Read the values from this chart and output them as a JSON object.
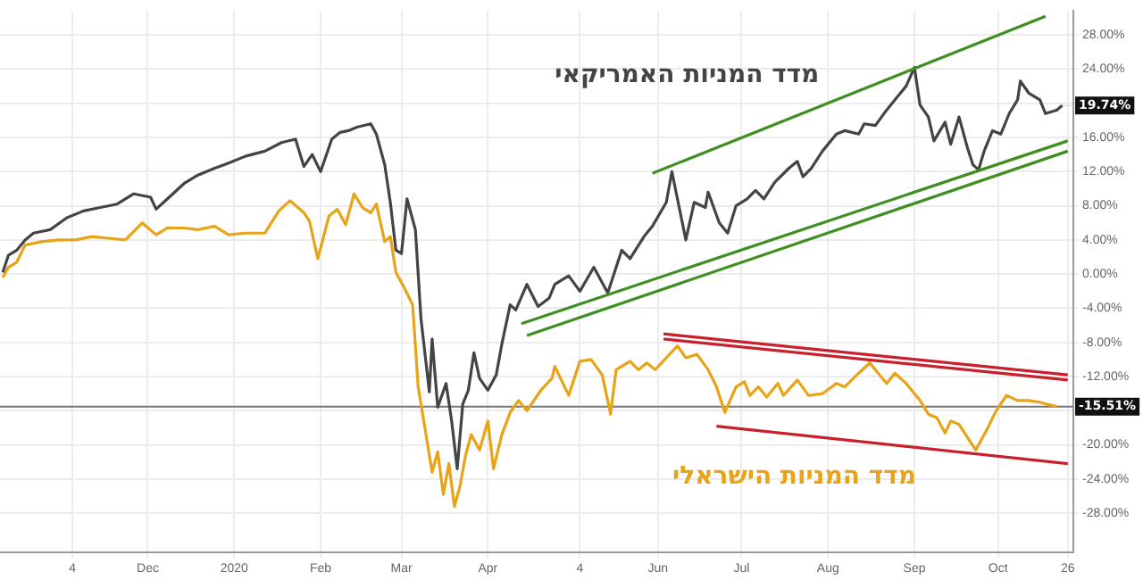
{
  "chart_data": {
    "type": "line",
    "marker": "none",
    "grid": true,
    "xlim": [
      "2019-10-09",
      "2020-10-28"
    ],
    "xticks": [
      {
        "value": "2019-11-04",
        "label": "4"
      },
      {
        "value": "2019-12-01",
        "label": "Dec"
      },
      {
        "value": "2020-01-01",
        "label": "2020"
      },
      {
        "value": "2020-02-01",
        "label": "Feb"
      },
      {
        "value": "2020-03-01",
        "label": "Mar"
      },
      {
        "value": "2020-04-01",
        "label": "Apr"
      },
      {
        "value": "2020-05-04",
        "label": "4"
      },
      {
        "value": "2020-06-01",
        "label": "Jun"
      },
      {
        "value": "2020-07-01",
        "label": "Jul"
      },
      {
        "value": "2020-08-01",
        "label": "Aug"
      },
      {
        "value": "2020-09-01",
        "label": "Sep"
      },
      {
        "value": "2020-10-01",
        "label": "Oct"
      },
      {
        "value": "2020-10-26",
        "label": "26"
      }
    ],
    "ylim": [
      -32.6,
      30.8
    ],
    "yticks": [
      {
        "value": 28,
        "label": "28.00%"
      },
      {
        "value": 24,
        "label": "24.00%"
      },
      {
        "value": 20,
        "label": null
      },
      {
        "value": 16,
        "label": "16.00%"
      },
      {
        "value": 12,
        "label": "12.00%"
      },
      {
        "value": 8,
        "label": "8.00%"
      },
      {
        "value": 4,
        "label": "4.00%"
      },
      {
        "value": 0,
        "label": "0.00%"
      },
      {
        "value": -4,
        "label": "-4.00%"
      },
      {
        "value": -8,
        "label": "-8.00%"
      },
      {
        "value": -12,
        "label": "-12.00%"
      },
      {
        "value": -16,
        "label": null
      },
      {
        "value": -20,
        "label": "-20.00%"
      },
      {
        "value": -24,
        "label": "-24.00%"
      },
      {
        "value": -28,
        "label": "-28.00%"
      }
    ],
    "ref_lines": [
      {
        "axis": "y",
        "value": -15.51,
        "label": "-15.51%",
        "color": "#777777"
      }
    ],
    "annotations": [
      {
        "text": "19.74%",
        "x": "2020-10-24",
        "y": 19.74
      }
    ],
    "series": [
      {
        "name": "מדד המניות האמריקאי",
        "color": "#444444",
        "x": [
          "2019-10-10",
          "2019-10-12",
          "2019-10-15",
          "2019-10-18",
          "2019-10-21",
          "2019-10-27",
          "2019-11-02",
          "2019-11-08",
          "2019-11-14",
          "2019-11-20",
          "2019-11-26",
          "2019-12-02",
          "2019-12-04",
          "2019-12-08",
          "2019-12-14",
          "2019-12-19",
          "2019-12-25",
          "2019-12-30",
          "2020-01-05",
          "2020-01-12",
          "2020-01-18",
          "2020-01-23",
          "2020-01-26",
          "2020-01-29",
          "2020-02-01",
          "2020-02-05",
          "2020-02-08",
          "2020-02-11",
          "2020-02-14",
          "2020-02-19",
          "2020-02-21",
          "2020-02-24",
          "2020-02-26",
          "2020-02-28",
          "2020-03-01",
          "2020-03-03",
          "2020-03-06",
          "2020-03-08",
          "2020-03-11",
          "2020-03-12",
          "2020-03-14",
          "2020-03-17",
          "2020-03-19",
          "2020-03-21",
          "2020-03-23",
          "2020-03-25",
          "2020-03-27",
          "2020-03-29",
          "2020-04-01",
          "2020-04-04",
          "2020-04-06",
          "2020-04-09",
          "2020-04-11",
          "2020-04-15",
          "2020-04-19",
          "2020-04-23",
          "2020-04-25",
          "2020-04-30",
          "2020-05-04",
          "2020-05-09",
          "2020-05-14",
          "2020-05-19",
          "2020-05-22",
          "2020-05-27",
          "2020-05-30",
          "2020-06-04",
          "2020-06-06",
          "2020-06-08",
          "2020-06-11",
          "2020-06-14",
          "2020-06-18",
          "2020-06-19",
          "2020-06-23",
          "2020-06-26",
          "2020-06-29",
          "2020-07-03",
          "2020-07-06",
          "2020-07-09",
          "2020-07-13",
          "2020-07-18",
          "2020-07-21",
          "2020-07-23",
          "2020-07-26",
          "2020-07-30",
          "2020-08-04",
          "2020-08-07",
          "2020-08-12",
          "2020-08-14",
          "2020-08-18",
          "2020-08-22",
          "2020-08-26",
          "2020-08-29",
          "2020-09-01",
          "2020-09-03",
          "2020-09-06",
          "2020-09-08",
          "2020-09-12",
          "2020-09-14",
          "2020-09-17",
          "2020-09-20",
          "2020-09-22",
          "2020-09-24",
          "2020-09-26",
          "2020-09-29",
          "2020-10-02",
          "2020-10-05",
          "2020-10-08",
          "2020-10-09",
          "2020-10-12",
          "2020-10-16",
          "2020-10-18",
          "2020-10-22",
          "2020-10-24"
        ],
        "values": [
          0.2,
          2.2,
          2.8,
          4,
          4.8,
          5.2,
          6.6,
          7.4,
          7.8,
          8.2,
          9.4,
          9,
          7.6,
          8.8,
          10.6,
          11.6,
          12.4,
          13,
          13.8,
          14.4,
          15.4,
          15.8,
          12.6,
          14,
          12,
          15.8,
          16.6,
          16.8,
          17.2,
          17.6,
          16.4,
          12.8,
          8.4,
          2.8,
          2.4,
          8.8,
          5.2,
          -5.2,
          -13.8,
          -7.6,
          -15.6,
          -12.8,
          -17.2,
          -22.8,
          -15.2,
          -13.6,
          -9.2,
          -12.2,
          -13.6,
          -11.8,
          -8.2,
          -3.6,
          -4.2,
          -1.2,
          -3.8,
          -2.8,
          -1.2,
          -0.2,
          -2,
          0.8,
          -2.2,
          2.8,
          1.8,
          4.4,
          5.6,
          8.4,
          12,
          8.8,
          4,
          8.4,
          7.8,
          9.6,
          6,
          4.8,
          8,
          8.8,
          9.8,
          8.8,
          10.8,
          12.4,
          13.2,
          11.4,
          12.4,
          14.4,
          16.4,
          16.8,
          16.4,
          17.6,
          17.4,
          19.2,
          20.8,
          22,
          24.2,
          19.8,
          18.4,
          15.6,
          17.8,
          15.2,
          18.4,
          14.8,
          12.8,
          12.2,
          14.4,
          16.8,
          16.4,
          18.8,
          20.4,
          22.6,
          21.2,
          20.4,
          18.8,
          19.2,
          19.74
        ]
      },
      {
        "name": "מדד המניות הישראלי",
        "color": "#e8a317",
        "x": [
          "2019-10-10",
          "2019-10-12",
          "2019-10-15",
          "2019-10-18",
          "2019-10-24",
          "2019-10-30",
          "2019-11-05",
          "2019-11-11",
          "2019-11-17",
          "2019-11-23",
          "2019-11-29",
          "2019-12-04",
          "2019-12-08",
          "2019-12-14",
          "2019-12-19",
          "2019-12-25",
          "2019-12-30",
          "2020-01-05",
          "2020-01-12",
          "2020-01-17",
          "2020-01-21",
          "2020-01-26",
          "2020-01-28",
          "2020-01-31",
          "2020-02-04",
          "2020-02-07",
          "2020-02-10",
          "2020-02-13",
          "2020-02-16",
          "2020-02-19",
          "2020-02-21",
          "2020-02-24",
          "2020-02-26",
          "2020-02-28",
          "2020-03-02",
          "2020-03-05",
          "2020-03-07",
          "2020-03-10",
          "2020-03-12",
          "2020-03-14",
          "2020-03-16",
          "2020-03-18",
          "2020-03-20",
          "2020-03-22",
          "2020-03-24",
          "2020-03-26",
          "2020-03-29",
          "2020-04-01",
          "2020-04-03",
          "2020-04-06",
          "2020-04-09",
          "2020-04-12",
          "2020-04-15",
          "2020-04-20",
          "2020-04-24",
          "2020-04-25",
          "2020-04-30",
          "2020-05-04",
          "2020-05-08",
          "2020-05-12",
          "2020-05-15",
          "2020-05-17",
          "2020-05-22",
          "2020-05-25",
          "2020-05-28",
          "2020-05-31",
          "2020-06-04",
          "2020-06-08",
          "2020-06-11",
          "2020-06-15",
          "2020-06-19",
          "2020-06-22",
          "2020-06-25",
          "2020-06-29",
          "2020-07-02",
          "2020-07-04",
          "2020-07-07",
          "2020-07-10",
          "2020-07-14",
          "2020-07-16",
          "2020-07-21",
          "2020-07-25",
          "2020-07-30",
          "2020-08-04",
          "2020-08-07",
          "2020-08-12",
          "2020-08-16",
          "2020-08-19",
          "2020-08-22",
          "2020-08-25",
          "2020-08-29",
          "2020-09-03",
          "2020-09-06",
          "2020-09-09",
          "2020-09-12",
          "2020-09-14",
          "2020-09-17",
          "2020-09-21",
          "2020-09-23",
          "2020-09-27",
          "2020-09-30",
          "2020-10-04",
          "2020-10-08",
          "2020-10-12",
          "2020-10-16",
          "2020-10-18",
          "2020-10-22"
        ],
        "values": [
          -0.4,
          0.8,
          1.4,
          3.4,
          3.8,
          4,
          4,
          4.4,
          4.2,
          4,
          6,
          4.6,
          5.4,
          5.4,
          5.2,
          5.6,
          4.6,
          4.8,
          4.8,
          7.4,
          8.6,
          7.2,
          6.2,
          1.8,
          6.8,
          7.6,
          5.8,
          9.4,
          7.8,
          7.2,
          8.2,
          3.8,
          4.4,
          0.2,
          -1.6,
          -3.6,
          -13.2,
          -19.2,
          -23.2,
          -20.8,
          -25.8,
          -22.2,
          -27.2,
          -24.8,
          -21.2,
          -18.8,
          -20.6,
          -17.2,
          -22.8,
          -18.8,
          -16.2,
          -14.8,
          -16,
          -13.6,
          -12.2,
          -10.8,
          -14.2,
          -10.2,
          -10,
          -11.8,
          -16.4,
          -11.2,
          -10.2,
          -11.2,
          -10.4,
          -11.2,
          -9.8,
          -8.4,
          -9.8,
          -9.4,
          -11.2,
          -13.2,
          -16.2,
          -13.2,
          -12.6,
          -14.2,
          -13.2,
          -14.4,
          -12.8,
          -14.2,
          -12.4,
          -14.2,
          -14,
          -12.8,
          -13.2,
          -11.6,
          -10.4,
          -11.6,
          -12.8,
          -11.6,
          -12.8,
          -14.8,
          -16.4,
          -16.8,
          -18.6,
          -17.2,
          -17.6,
          -19.6,
          -20.6,
          -18.2,
          -16.2,
          -14.2,
          -14.8,
          -14.8,
          -15,
          -15.2,
          -15.51
        ]
      },
      {
        "type": "line",
        "color": "#3f8f22",
        "x": [
          "2020-05-30",
          "2020-10-18"
        ],
        "values": [
          11.8,
          30.2
        ]
      },
      {
        "type": "line",
        "color": "#3f8f22",
        "x": [
          "2020-04-13",
          "2020-10-26"
        ],
        "values": [
          -5.8,
          15.6
        ]
      },
      {
        "type": "line",
        "color": "#3f8f22",
        "x": [
          "2020-04-15",
          "2020-10-26"
        ],
        "values": [
          -7.2,
          14.4
        ]
      },
      {
        "type": "line",
        "color": "#c8202c",
        "x": [
          "2020-06-03",
          "2020-10-26"
        ],
        "values": [
          -7,
          -11.8
        ]
      },
      {
        "type": "line",
        "color": "#c8202c",
        "x": [
          "2020-06-03",
          "2020-10-26"
        ],
        "values": [
          -7.6,
          -12.4
        ]
      },
      {
        "type": "line",
        "color": "#c8202c",
        "x": [
          "2020-06-22",
          "2020-10-26"
        ],
        "values": [
          -17.8,
          -22.2
        ]
      }
    ]
  }
}
